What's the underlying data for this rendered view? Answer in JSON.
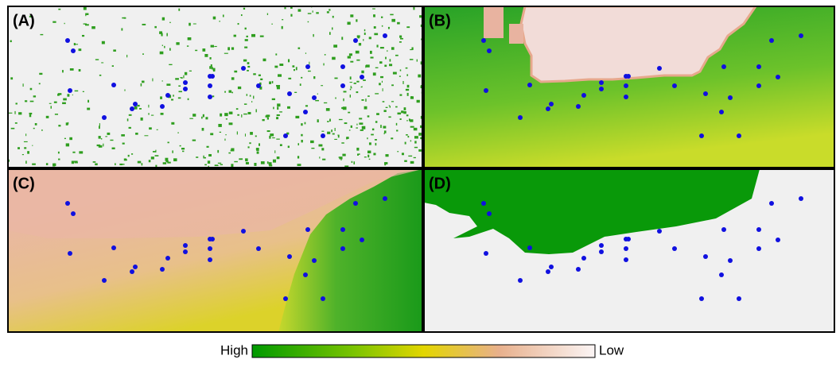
{
  "panels": [
    {
      "label": "(A)"
    },
    {
      "label": "(B)"
    },
    {
      "label": "(C)"
    },
    {
      "label": "(D)"
    }
  ],
  "legend": {
    "high": "High",
    "low": "Low"
  }
}
